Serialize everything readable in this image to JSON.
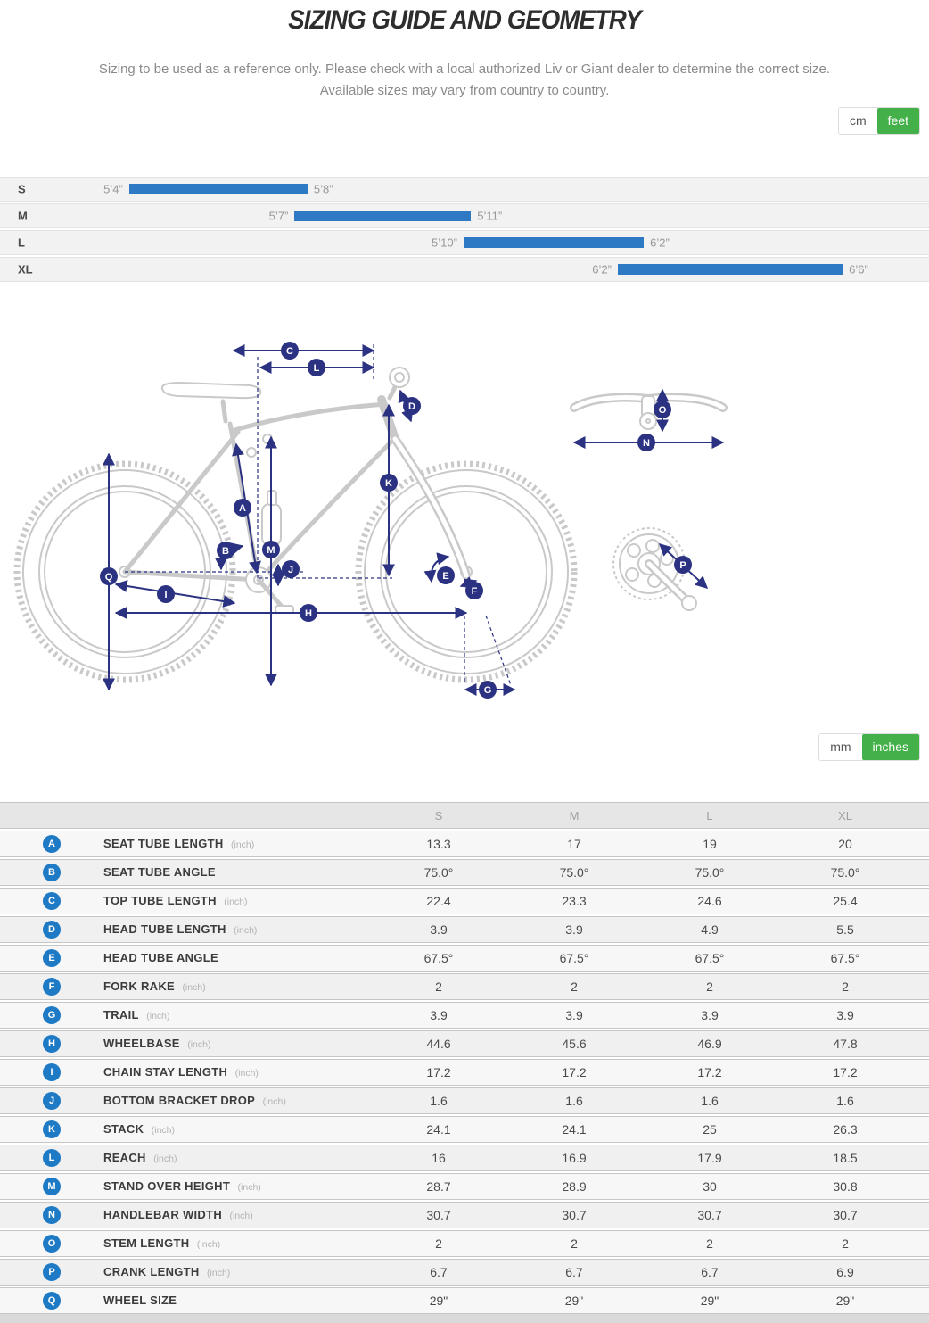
{
  "header": {
    "title": "SIZING GUIDE AND GEOMETRY",
    "subtitle_line1": "Sizing to be used as a reference only. Please check with a local authorized Liv or Giant dealer to determine the correct size.",
    "subtitle_line2": "Available sizes may vary from country to country."
  },
  "unit_toggles": {
    "height": {
      "options": [
        "cm",
        "feet"
      ],
      "selected": "feet"
    },
    "geometry": {
      "options": [
        "mm",
        "inches"
      ],
      "selected": "inches"
    },
    "accent_color": "#43b049"
  },
  "size_chart": {
    "bar_color": "#2e79c3",
    "rows": [
      {
        "label": "S",
        "min": "5’4”",
        "max": "5’8”",
        "left_pct": 13.9,
        "width_pct": 19.2
      },
      {
        "label": "M",
        "min": "5’7”",
        "max": "5’11”",
        "left_pct": 31.7,
        "width_pct": 19.0
      },
      {
        "label": "L",
        "min": "5’10”",
        "max": "6’2”",
        "left_pct": 49.9,
        "width_pct": 19.4
      },
      {
        "label": "XL",
        "min": "6’2”",
        "max": "6’6”",
        "left_pct": 66.5,
        "width_pct": 24.2
      }
    ]
  },
  "diagram": {
    "line_color": "#2b3282",
    "bike_color": "#c9c9c9",
    "badges": [
      {
        "letter": "A"
      },
      {
        "letter": "B"
      },
      {
        "letter": "C"
      },
      {
        "letter": "D"
      },
      {
        "letter": "E"
      },
      {
        "letter": "F"
      },
      {
        "letter": "G"
      },
      {
        "letter": "H"
      },
      {
        "letter": "I"
      },
      {
        "letter": "J"
      },
      {
        "letter": "K"
      },
      {
        "letter": "L"
      },
      {
        "letter": "M"
      },
      {
        "letter": "N"
      },
      {
        "letter": "O"
      },
      {
        "letter": "P"
      },
      {
        "letter": "Q"
      }
    ]
  },
  "table": {
    "columns": [
      "S",
      "M",
      "L",
      "XL"
    ],
    "badge_color": "#1e7ac5",
    "rows": [
      {
        "letter": "A",
        "label": "SEAT TUBE LENGTH",
        "unit": "(inch)",
        "values": [
          "13.3",
          "17",
          "19",
          "20"
        ]
      },
      {
        "letter": "B",
        "label": "SEAT TUBE ANGLE",
        "unit": "",
        "values": [
          "75.0°",
          "75.0°",
          "75.0°",
          "75.0°"
        ]
      },
      {
        "letter": "C",
        "label": "TOP TUBE LENGTH",
        "unit": "(inch)",
        "values": [
          "22.4",
          "23.3",
          "24.6",
          "25.4"
        ]
      },
      {
        "letter": "D",
        "label": "HEAD TUBE LENGTH",
        "unit": "(inch)",
        "values": [
          "3.9",
          "3.9",
          "4.9",
          "5.5"
        ]
      },
      {
        "letter": "E",
        "label": "HEAD TUBE ANGLE",
        "unit": "",
        "values": [
          "67.5°",
          "67.5°",
          "67.5°",
          "67.5°"
        ]
      },
      {
        "letter": "F",
        "label": "FORK RAKE",
        "unit": "(inch)",
        "values": [
          "2",
          "2",
          "2",
          "2"
        ]
      },
      {
        "letter": "G",
        "label": "TRAIL",
        "unit": "(inch)",
        "values": [
          "3.9",
          "3.9",
          "3.9",
          "3.9"
        ]
      },
      {
        "letter": "H",
        "label": "WHEELBASE",
        "unit": "(inch)",
        "values": [
          "44.6",
          "45.6",
          "46.9",
          "47.8"
        ]
      },
      {
        "letter": "I",
        "label": "CHAIN STAY LENGTH",
        "unit": "(inch)",
        "values": [
          "17.2",
          "17.2",
          "17.2",
          "17.2"
        ]
      },
      {
        "letter": "J",
        "label": "BOTTOM BRACKET DROP",
        "unit": "(inch)",
        "values": [
          "1.6",
          "1.6",
          "1.6",
          "1.6"
        ]
      },
      {
        "letter": "K",
        "label": "STACK",
        "unit": "(inch)",
        "values": [
          "24.1",
          "24.1",
          "25",
          "26.3"
        ]
      },
      {
        "letter": "L",
        "label": "REACH",
        "unit": "(inch)",
        "values": [
          "16",
          "16.9",
          "17.9",
          "18.5"
        ]
      },
      {
        "letter": "M",
        "label": "STAND OVER HEIGHT",
        "unit": "(inch)",
        "values": [
          "28.7",
          "28.9",
          "30",
          "30.8"
        ]
      },
      {
        "letter": "N",
        "label": "HANDLEBAR WIDTH",
        "unit": "(inch)",
        "values": [
          "30.7",
          "30.7",
          "30.7",
          "30.7"
        ]
      },
      {
        "letter": "O",
        "label": "STEM LENGTH",
        "unit": "(inch)",
        "values": [
          "2",
          "2",
          "2",
          "2"
        ]
      },
      {
        "letter": "P",
        "label": "CRANK LENGTH",
        "unit": "(inch)",
        "values": [
          "6.7",
          "6.7",
          "6.7",
          "6.9"
        ]
      },
      {
        "letter": "Q",
        "label": "WHEEL SIZE",
        "unit": "",
        "values": [
          "29\"",
          "29\"",
          "29\"",
          "29\""
        ]
      }
    ]
  }
}
